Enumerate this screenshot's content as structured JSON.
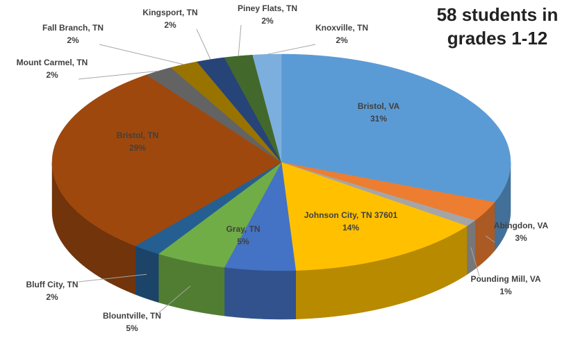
{
  "chart_data": {
    "type": "pie",
    "title": "58 students in grades 1-12",
    "categories": [
      "Bristol, VA",
      "Abingdon, VA",
      "Pounding Mill, VA",
      "Johnson City, TN 37601",
      "Gray, TN",
      "Blountville, TN",
      "Bluff City, TN",
      "Bristol, TN",
      "Mount Carmel, TN",
      "Fall Branch, TN",
      "Kingsport, TN",
      "Piney Flats, TN",
      "Knoxville, TN"
    ],
    "values": [
      31,
      3,
      1,
      14,
      5,
      5,
      2,
      29,
      2,
      2,
      2,
      2,
      2
    ],
    "value_labels": [
      "31%",
      "3%",
      "1%",
      "14%",
      "5%",
      "5%",
      "2%",
      "29%",
      "2%",
      "2%",
      "2%",
      "2%",
      "2%"
    ],
    "colors": [
      "#5b9bd5",
      "#ed7d31",
      "#a5a5a5",
      "#ffc000",
      "#4472c4",
      "#70ad47",
      "#255e91",
      "#9e480e",
      "#636363",
      "#997300",
      "#264478",
      "#43682b",
      "#7cafdd"
    ]
  }
}
